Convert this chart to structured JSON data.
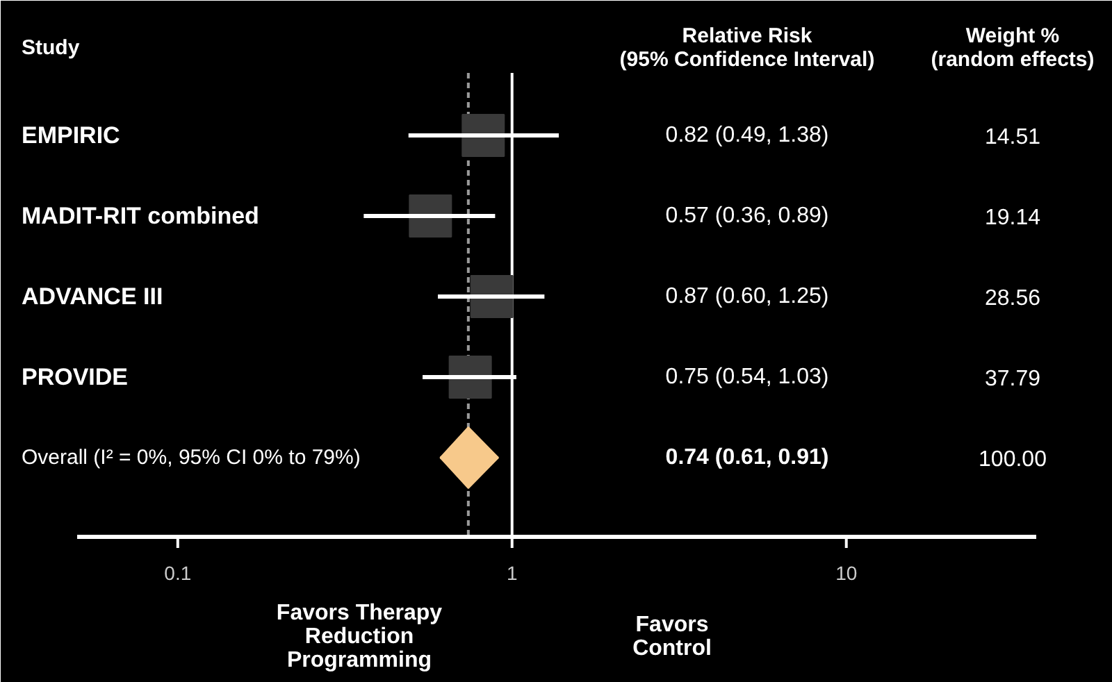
{
  "chart_data": {
    "type": "scatter",
    "orientation": "horizontal",
    "log": "x",
    "categories": [
      "EMPIRIC",
      "MADIT-RIT combined",
      "ADVANCE III",
      "PROVIDE",
      "Overall (I² = 0%, 95% CI 0% to 79%)"
    ],
    "xlim": [
      0.05,
      37
    ],
    "xticks": [
      0.1,
      1,
      10
    ],
    "series": [
      {
        "type": "scatter",
        "marker": "square",
        "color": "#3a3a3a",
        "values": [
          0.82,
          0.57,
          0.87,
          0.75,
          null
        ],
        "errors": [
          [
            0.49,
            1.38
          ],
          [
            0.36,
            0.89
          ],
          [
            0.6,
            1.25
          ],
          [
            0.54,
            1.03
          ],
          null
        ]
      },
      {
        "type": "scatter",
        "marker": "diamond",
        "color": "#f7c98b",
        "values": [
          null,
          null,
          null,
          null,
          0.74
        ],
        "errors": [
          null,
          null,
          null,
          null,
          [
            0.61,
            0.91
          ]
        ]
      }
    ],
    "ref_lines": [
      {
        "axis": "x",
        "value": 1,
        "color": "#ffffff",
        "line_style": "solid"
      },
      {
        "axis": "x",
        "value": 0.74,
        "color": "#9a9a9a",
        "line_style": "dashed"
      }
    ],
    "annotations": [
      "Study",
      "Relative Risk\n(95% Confidence Interval)",
      "Weight %\n(random effects)",
      "14.51",
      "19.14",
      "28.56",
      "37.79",
      "100.00",
      "Favors Therapy\nReduction\nProgramming",
      "Favors\nControl",
      "0.82 (0.49, 1.38)",
      "0.57 (0.36, 0.89)",
      "0.87 (0.60, 1.25)",
      "0.75 (0.54, 1.03)",
      "0.74 (0.61, 0.91)"
    ]
  }
}
